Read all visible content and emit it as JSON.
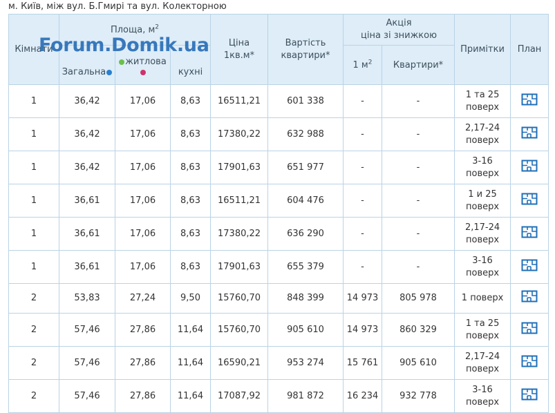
{
  "caption": "м. Київ, між вул. Б.Гмирі та вул. Колекторною",
  "watermark": "Forum.Domik.ua",
  "header": {
    "rooms": "Кімнати",
    "area": "Площа, м",
    "area_sup": "2",
    "area_total": "Загальна",
    "area_living": "житлова",
    "area_kitchen": "кухні",
    "price_line1": "Ціна",
    "price_line2": "1кв.м*",
    "cost_line1": "Вартість",
    "cost_line2": "квартири*",
    "promo_line1": "Акція",
    "promo_line2": "ціна зі знижкою",
    "promo_m2": "1 м",
    "promo_m2_sup": "2",
    "promo_flat": "Квартири*",
    "notes": "Примітки",
    "plan": "План"
  },
  "plan_icon": "floor-plan-icon",
  "rows": [
    {
      "rooms": "1",
      "total": "36,42",
      "living": "17,06",
      "kitchen": "8,63",
      "price": "16511,21",
      "cost": "601 338",
      "promo_m2": "-",
      "promo_flat": "-",
      "notes1": "1 та 25",
      "notes2": "поверх"
    },
    {
      "rooms": "1",
      "total": "36,42",
      "living": "17,06",
      "kitchen": "8,63",
      "price": "17380,22",
      "cost": "632 988",
      "promo_m2": "-",
      "promo_flat": "-",
      "notes1": "2,17-24",
      "notes2": "поверх"
    },
    {
      "rooms": "1",
      "total": "36,42",
      "living": "17,06",
      "kitchen": "8,63",
      "price": "17901,63",
      "cost": "651 977",
      "promo_m2": "-",
      "promo_flat": "-",
      "notes1": "3-16",
      "notes2": "поверх"
    },
    {
      "rooms": "1",
      "total": "36,61",
      "living": "17,06",
      "kitchen": "8,63",
      "price": "16511,21",
      "cost": "604 476",
      "promo_m2": "-",
      "promo_flat": "-",
      "notes1": "1 и 25",
      "notes2": "поверх"
    },
    {
      "rooms": "1",
      "total": "36,61",
      "living": "17,06",
      "kitchen": "8,63",
      "price": "17380,22",
      "cost": "636 290",
      "promo_m2": "-",
      "promo_flat": "-",
      "notes1": "2,17-24",
      "notes2": "поверх"
    },
    {
      "rooms": "1",
      "total": "36,61",
      "living": "17,06",
      "kitchen": "8,63",
      "price": "17901,63",
      "cost": "655 379",
      "promo_m2": "-",
      "promo_flat": "-",
      "notes1": "3-16",
      "notes2": "поверх"
    },
    {
      "rooms": "2",
      "total": "53,83",
      "living": "27,24",
      "kitchen": "9,50",
      "price": "15760,70",
      "cost": "848 399",
      "promo_m2": "14 973",
      "promo_flat": "805 978",
      "notes1": "1 поверх",
      "notes2": ""
    },
    {
      "rooms": "2",
      "total": "57,46",
      "living": "27,86",
      "kitchen": "11,64",
      "price": "15760,70",
      "cost": "905 610",
      "promo_m2": "14 973",
      "promo_flat": "860 329",
      "notes1": "1 та 25",
      "notes2": "поверх"
    },
    {
      "rooms": "2",
      "total": "57,46",
      "living": "27,86",
      "kitchen": "11,64",
      "price": "16590,21",
      "cost": "953 274",
      "promo_m2": "15 761",
      "promo_flat": "905 610",
      "notes1": "2,17-24",
      "notes2": "поверх"
    },
    {
      "rooms": "2",
      "total": "57,46",
      "living": "27,86",
      "kitchen": "11,64",
      "price": "17087,92",
      "cost": "981 872",
      "promo_m2": "16 234",
      "promo_flat": "932 778",
      "notes1": "3-16",
      "notes2": "поверх"
    }
  ]
}
